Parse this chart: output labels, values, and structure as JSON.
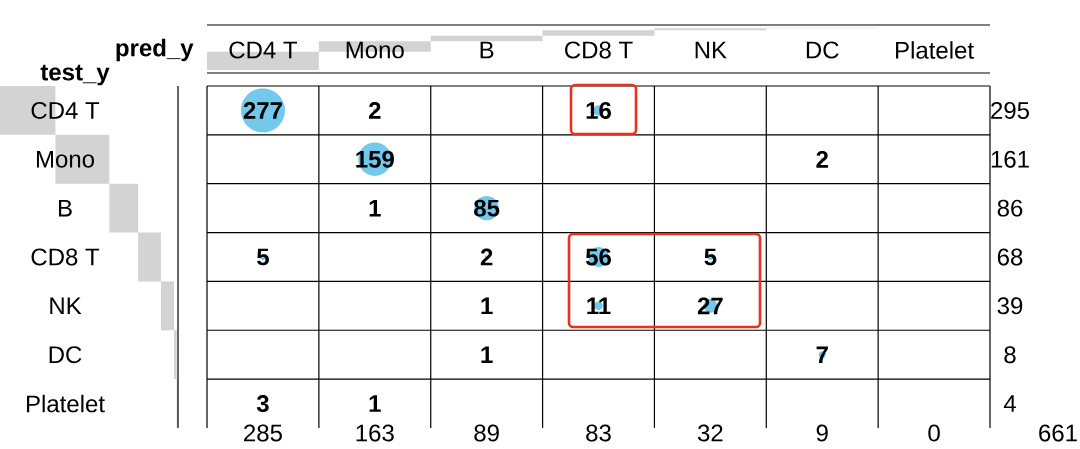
{
  "chart_data": {
    "type": "heatmap",
    "xlabel": "pred_y",
    "ylabel": "test_y",
    "color": "#73c9ec",
    "data_labels": true,
    "categories": [
      "CD4 T",
      "Mono",
      "B",
      "CD8 T",
      "NK",
      "DC",
      "Platelet"
    ],
    "y_categories": [
      "CD4 T",
      "Mono",
      "B",
      "CD8 T",
      "NK",
      "DC",
      "Platelet"
    ],
    "y2_categories": [
      "295",
      "161",
      "86",
      "68",
      "39",
      "8",
      "4"
    ],
    "cells": [
      [
        277,
        2,
        null,
        16,
        null,
        null,
        null
      ],
      [
        null,
        159,
        null,
        null,
        null,
        2,
        null
      ],
      [
        null,
        1,
        85,
        null,
        null,
        null,
        null
      ],
      [
        5,
        null,
        2,
        56,
        5,
        null,
        null
      ],
      [
        null,
        null,
        1,
        11,
        27,
        null,
        null
      ],
      [
        null,
        null,
        1,
        null,
        null,
        7,
        null
      ],
      [
        3,
        1,
        null,
        null,
        null,
        null,
        null
      ]
    ],
    "annotations": [
      "285",
      "163",
      "89",
      "83",
      "32",
      "9",
      "0",
      "661"
    ]
  }
}
